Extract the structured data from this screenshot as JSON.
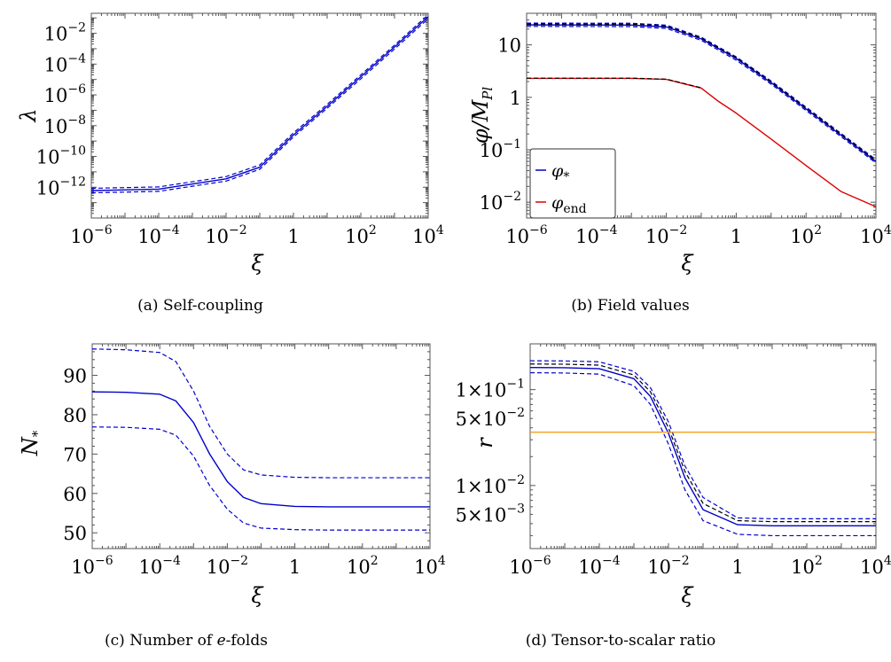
{
  "chart_data": [
    {
      "type": "line",
      "panel": "a",
      "caption": "(a) Self-coupling",
      "xlabel": "ξ",
      "ylabel": "λ",
      "xscale": "log",
      "yscale": "log",
      "xlim": [
        1e-06,
        10000.0
      ],
      "ylim": [
        1e-14,
        0.2
      ],
      "xticks": [
        {
          "value": 1e-06,
          "base": "10",
          "exp": "−6"
        },
        {
          "value": 0.0001,
          "base": "10",
          "exp": "−4"
        },
        {
          "value": 0.01,
          "base": "10",
          "exp": "−2"
        },
        {
          "value": 1,
          "base": "1",
          "exp": ""
        },
        {
          "value": 100.0,
          "base": "10",
          "exp": "2"
        },
        {
          "value": 10000.0,
          "base": "10",
          "exp": "4"
        }
      ],
      "yticks": [
        {
          "value": 1e-12,
          "base": "10",
          "exp": "−12"
        },
        {
          "value": 1e-10,
          "base": "10",
          "exp": "−10"
        },
        {
          "value": 1e-08,
          "base": "10",
          "exp": "−8"
        },
        {
          "value": 1e-06,
          "base": "10",
          "exp": "−6"
        },
        {
          "value": 0.0001,
          "base": "10",
          "exp": "−4"
        },
        {
          "value": 0.01,
          "base": "10",
          "exp": "−2"
        }
      ],
      "series": [
        {
          "color": "#0000cc",
          "dash": false,
          "x": [
            1e-06,
            0.0001,
            0.01,
            0.1,
            1,
            10,
            100,
            1000,
            10000
          ],
          "y": [
            6e-13,
            7.5e-13,
            3.5e-12,
            2e-11,
            2.5e-09,
            1.8e-07,
            1.5e-05,
            0.0013,
            0.12
          ]
        },
        {
          "color": "#0000cc",
          "dash": true,
          "x": [
            1e-06,
            0.0001,
            0.01,
            0.1,
            1,
            10,
            100,
            1000,
            10000
          ],
          "y": [
            8.5e-13,
            1.05e-12,
            4.9e-12,
            2.8e-11,
            3.4e-09,
            2.4e-07,
            2e-05,
            0.0017,
            0.16
          ]
        },
        {
          "color": "#0000cc",
          "dash": true,
          "x": [
            1e-06,
            0.0001,
            0.01,
            0.1,
            1,
            10,
            100,
            1000,
            10000
          ],
          "y": [
            4.3e-13,
            5.4e-13,
            2.5e-12,
            1.45e-11,
            1.85e-09,
            1.35e-07,
            1.1e-05,
            0.00095,
            0.088
          ]
        }
      ]
    },
    {
      "type": "line",
      "panel": "b",
      "caption": "(b) Field values",
      "xlabel": "ξ",
      "ylabel": "φ/M_Pl",
      "ylabel_main": "φ/M",
      "ylabel_sub": "Pl",
      "xscale": "log",
      "yscale": "log",
      "xlim": [
        1e-06,
        10000.0
      ],
      "ylim": [
        0.005,
        40
      ],
      "legend": "bottom-left",
      "xticks": [
        {
          "value": 1e-06,
          "base": "10",
          "exp": "−6"
        },
        {
          "value": 0.0001,
          "base": "10",
          "exp": "−4"
        },
        {
          "value": 0.01,
          "base": "10",
          "exp": "−2"
        },
        {
          "value": 1,
          "base": "1",
          "exp": ""
        },
        {
          "value": 100.0,
          "base": "10",
          "exp": "2"
        },
        {
          "value": 10000.0,
          "base": "10",
          "exp": "4"
        }
      ],
      "yticks": [
        {
          "value": 0.01,
          "base": "10",
          "exp": "−2"
        },
        {
          "value": 0.1,
          "base": "10",
          "exp": "−1"
        },
        {
          "value": 1,
          "base": "1",
          "exp": ""
        },
        {
          "value": 10,
          "base": "10",
          "exp": ""
        }
      ],
      "series": [
        {
          "name": "φ*",
          "legend_main": "φ",
          "legend_sub": "*",
          "color": "#0000cc",
          "dash": false,
          "x": [
            1e-06,
            0.001,
            0.01,
            0.1,
            1,
            10,
            100,
            1000,
            10000
          ],
          "y": [
            24,
            23.8,
            22,
            13,
            5.5,
            1.9,
            0.6,
            0.19,
            0.06
          ]
        },
        {
          "color": "#0000cc",
          "dash": true,
          "x": [
            1e-06,
            0.001,
            0.01,
            0.1,
            1,
            10,
            100,
            1000,
            10000
          ],
          "y": [
            26,
            25.8,
            23.8,
            14,
            5.9,
            2.05,
            0.65,
            0.205,
            0.065
          ]
        },
        {
          "color": "#0000cc",
          "dash": true,
          "x": [
            1e-06,
            0.001,
            0.01,
            0.1,
            1,
            10,
            100,
            1000,
            10000
          ],
          "y": [
            22.5,
            22.3,
            20.6,
            12.2,
            5.1,
            1.78,
            0.56,
            0.178,
            0.056
          ]
        },
        {
          "color": "#000000",
          "dash": true,
          "x": [
            1e-06,
            0.001,
            0.01,
            0.1,
            1,
            10,
            100,
            1000,
            10000
          ],
          "y": [
            25,
            24.8,
            22.9,
            13.5,
            5.7,
            1.97,
            0.62,
            0.197,
            0.062
          ]
        },
        {
          "name": "φend",
          "legend_main": "φ",
          "legend_sub": "end",
          "color": "#dd0000",
          "dash": false,
          "x": [
            1e-06,
            0.001,
            0.01,
            0.1,
            0.3,
            1,
            10,
            100,
            1000,
            10000
          ],
          "y": [
            2.3,
            2.3,
            2.2,
            1.5,
            0.85,
            0.5,
            0.16,
            0.05,
            0.016,
            0.0082
          ]
        },
        {
          "color": "#000000",
          "dash": true,
          "x": [
            1e-06,
            0.001,
            0.01,
            0.1
          ],
          "y": [
            2.32,
            2.32,
            2.22,
            1.52
          ]
        }
      ]
    },
    {
      "type": "line",
      "panel": "c",
      "caption_pre": "(c) Number of ",
      "caption_em": "e",
      "caption_post": "-folds",
      "xlabel": "ξ",
      "ylabel": "N*",
      "ylabel_main": "N",
      "ylabel_sub": "*",
      "xscale": "log",
      "yscale": "linear",
      "xlim": [
        1e-06,
        10000.0
      ],
      "ylim": [
        46,
        98
      ],
      "xticks": [
        {
          "value": 1e-06,
          "base": "10",
          "exp": "−6"
        },
        {
          "value": 0.0001,
          "base": "10",
          "exp": "−4"
        },
        {
          "value": 0.01,
          "base": "10",
          "exp": "−2"
        },
        {
          "value": 1,
          "base": "1",
          "exp": ""
        },
        {
          "value": 100.0,
          "base": "10",
          "exp": "2"
        },
        {
          "value": 10000.0,
          "base": "10",
          "exp": "4"
        }
      ],
      "yticks": [
        {
          "value": 50,
          "base": "50",
          "exp": ""
        },
        {
          "value": 60,
          "base": "60",
          "exp": ""
        },
        {
          "value": 70,
          "base": "70",
          "exp": ""
        },
        {
          "value": 80,
          "base": "80",
          "exp": ""
        },
        {
          "value": 90,
          "base": "90",
          "exp": ""
        }
      ],
      "series": [
        {
          "color": "#0000cc",
          "dash": false,
          "x": [
            1e-06,
            1e-05,
            0.0001,
            0.0003,
            0.001,
            0.003,
            0.01,
            0.03,
            0.1,
            1,
            10,
            100,
            1000,
            10000
          ],
          "y": [
            85.8,
            85.7,
            85.2,
            83.5,
            78,
            70,
            63,
            59,
            57.4,
            56.7,
            56.6,
            56.6,
            56.6,
            56.6
          ]
        },
        {
          "color": "#0000cc",
          "dash": true,
          "x": [
            1e-06,
            1e-05,
            0.0001,
            0.0003,
            0.001,
            0.003,
            0.01,
            0.03,
            0.1,
            1,
            10,
            100,
            1000,
            10000
          ],
          "y": [
            96.7,
            96.5,
            95.8,
            93.5,
            86,
            77,
            70,
            66,
            64.7,
            64.1,
            64,
            64,
            64,
            64
          ]
        },
        {
          "color": "#0000cc",
          "dash": true,
          "x": [
            1e-06,
            1e-05,
            0.0001,
            0.0003,
            0.001,
            0.003,
            0.01,
            0.03,
            0.1,
            1,
            10,
            100,
            1000,
            10000
          ],
          "y": [
            76.9,
            76.8,
            76.3,
            74.8,
            69.5,
            62,
            56,
            52.5,
            51.2,
            50.8,
            50.7,
            50.7,
            50.7,
            50.7
          ]
        }
      ]
    },
    {
      "type": "line",
      "panel": "d",
      "caption": "(d) Tensor-to-scalar ratio",
      "xlabel": "ξ",
      "ylabel": "r",
      "xscale": "log",
      "yscale": "log",
      "xlim": [
        1e-06,
        10000.0
      ],
      "ylim": [
        0.0022,
        0.3
      ],
      "xticks": [
        {
          "value": 1e-06,
          "base": "10",
          "exp": "−6"
        },
        {
          "value": 0.0001,
          "base": "10",
          "exp": "−4"
        },
        {
          "value": 0.01,
          "base": "10",
          "exp": "−2"
        },
        {
          "value": 1,
          "base": "1",
          "exp": ""
        },
        {
          "value": 100.0,
          "base": "10",
          "exp": "2"
        },
        {
          "value": 10000.0,
          "base": "10",
          "exp": "4"
        }
      ],
      "yticks": [
        {
          "value": 0.005,
          "base": "5×10",
          "exp": "−3"
        },
        {
          "value": 0.01,
          "base": "1×10",
          "exp": "−2"
        },
        {
          "value": 0.05,
          "base": "5×10",
          "exp": "−2"
        },
        {
          "value": 0.1,
          "base": "1×10",
          "exp": "−1"
        }
      ],
      "series": [
        {
          "color": "#0000cc",
          "dash": false,
          "x": [
            1e-06,
            1e-05,
            0.0001,
            0.001,
            0.003,
            0.01,
            0.03,
            0.1,
            1,
            10,
            100,
            1000,
            10000
          ],
          "y": [
            0.17,
            0.169,
            0.165,
            0.13,
            0.085,
            0.035,
            0.012,
            0.0056,
            0.0039,
            0.0038,
            0.0038,
            0.0038,
            0.0038
          ]
        },
        {
          "color": "#0000cc",
          "dash": true,
          "x": [
            1e-06,
            1e-05,
            0.0001,
            0.001,
            0.003,
            0.01,
            0.03,
            0.1,
            1,
            10,
            100,
            1000,
            10000
          ],
          "y": [
            0.2,
            0.199,
            0.195,
            0.155,
            0.105,
            0.046,
            0.016,
            0.0075,
            0.0046,
            0.0045,
            0.0045,
            0.0045,
            0.0045
          ]
        },
        {
          "color": "#0000cc",
          "dash": true,
          "x": [
            1e-06,
            1e-05,
            0.0001,
            0.001,
            0.003,
            0.01,
            0.03,
            0.1,
            1,
            10,
            100,
            1000,
            10000
          ],
          "y": [
            0.15,
            0.149,
            0.145,
            0.11,
            0.07,
            0.027,
            0.009,
            0.0043,
            0.0031,
            0.003,
            0.003,
            0.003,
            0.003
          ]
        },
        {
          "color": "#000000",
          "dash": true,
          "x": [
            1e-06,
            1e-05,
            0.0001,
            0.001,
            0.003,
            0.01,
            0.03,
            0.1,
            1,
            10,
            100,
            1000,
            10000
          ],
          "y": [
            0.185,
            0.184,
            0.18,
            0.142,
            0.095,
            0.04,
            0.014,
            0.0065,
            0.0043,
            0.0042,
            0.0042,
            0.0042,
            0.0042
          ]
        },
        {
          "color": "#f0a020",
          "dash": false,
          "x": [
            1e-06,
            10000
          ],
          "y": [
            0.036,
            0.036
          ]
        }
      ]
    }
  ]
}
